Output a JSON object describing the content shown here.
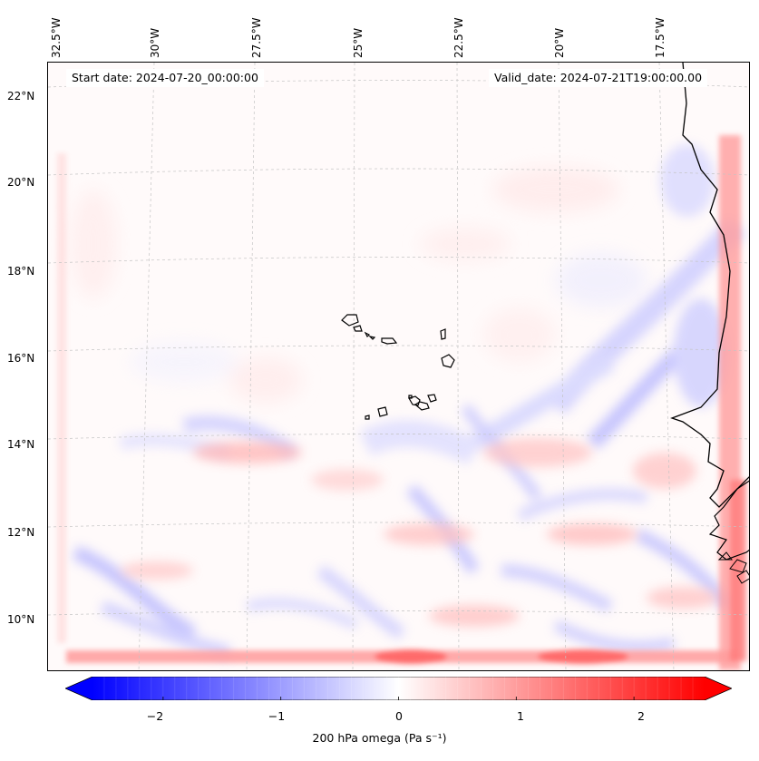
{
  "map": {
    "start_date_label": "Start date: 2024-07-20_00:00:00",
    "valid_date_label": "Valid_date: 2024-07-21T19:00:00.00",
    "longitude_labels": [
      "32.5°W",
      "30°W",
      "27.5°W",
      "25°W",
      "22.5°W",
      "20°W",
      "17.5°W"
    ],
    "latitude_labels": [
      "22°N",
      "20°N",
      "18°N",
      "16°N",
      "14°N",
      "12°N",
      "10°N"
    ],
    "variable": "200 hPa omega",
    "units": "Pa s⁻¹",
    "colormap": "bwr",
    "land_outline_color": "#000000",
    "grid_color": "#bdbdbd"
  },
  "colorbar": {
    "title": "200 hPa omega (Pa s⁻¹)",
    "ticks": [
      "−2",
      "−1",
      "0",
      "1",
      "2"
    ],
    "tick_values": [
      -2,
      -1,
      0,
      1,
      2
    ],
    "range": [
      -2.6,
      2.6
    ],
    "extend": "both",
    "levels": 52,
    "color_min": "#0000ff",
    "color_mid": "#ffffff",
    "color_max": "#ff0000"
  }
}
